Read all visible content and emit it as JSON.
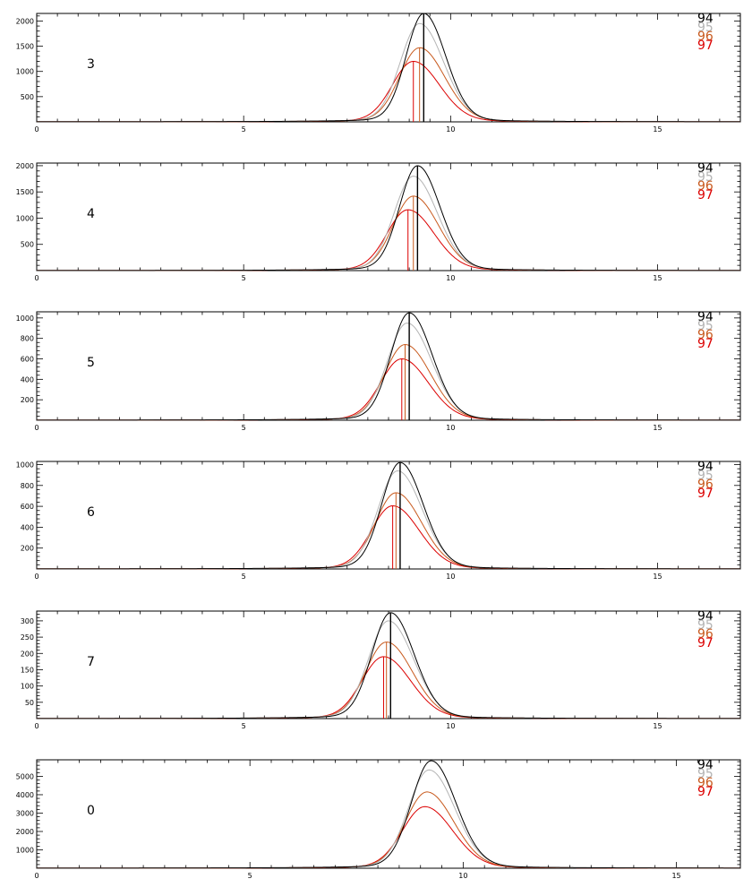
{
  "chart_data": [
    {
      "type": "line",
      "label": "3",
      "xlim": [
        0,
        17
      ],
      "ylim": [
        0,
        2150
      ],
      "xticks": [
        0,
        5,
        10,
        15
      ],
      "yticks": [
        500,
        1000,
        1500,
        2000
      ],
      "legend_position": "top-right",
      "series": [
        {
          "name": "94",
          "color": "#000000",
          "amp": 2150,
          "mu": 9.35,
          "sig": 0.42,
          "marker_x": 9.35
        },
        {
          "name": "95",
          "color": "#b4b4b4",
          "amp": 1950,
          "mu": 9.25,
          "sig": 0.46
        },
        {
          "name": "96",
          "color": "#c85a1e",
          "amp": 1470,
          "mu": 9.25,
          "sig": 0.48,
          "marker_x": 9.25
        },
        {
          "name": "97",
          "color": "#dc0000",
          "amp": 1200,
          "mu": 9.1,
          "sig": 0.5,
          "marker_x": 9.1
        }
      ]
    },
    {
      "type": "line",
      "label": "4",
      "xlim": [
        0,
        17
      ],
      "ylim": [
        0,
        2050
      ],
      "xticks": [
        0,
        5,
        10,
        15
      ],
      "yticks": [
        500,
        1000,
        1500,
        2000
      ],
      "legend_position": "top-right",
      "series": [
        {
          "name": "94",
          "color": "#000000",
          "amp": 2000,
          "mu": 9.2,
          "sig": 0.43,
          "marker_x": 9.2
        },
        {
          "name": "95",
          "color": "#b4b4b4",
          "amp": 1800,
          "mu": 9.1,
          "sig": 0.46
        },
        {
          "name": "96",
          "color": "#c85a1e",
          "amp": 1420,
          "mu": 9.1,
          "sig": 0.48,
          "marker_x": 9.1
        },
        {
          "name": "97",
          "color": "#dc0000",
          "amp": 1160,
          "mu": 8.97,
          "sig": 0.5,
          "marker_x": 8.97
        }
      ]
    },
    {
      "type": "line",
      "label": "5",
      "xlim": [
        0,
        17
      ],
      "ylim": [
        0,
        1060
      ],
      "xticks": [
        0,
        5,
        10,
        15
      ],
      "yticks": [
        200,
        400,
        600,
        800,
        1000
      ],
      "legend_position": "top-right",
      "series": [
        {
          "name": "94",
          "color": "#000000",
          "amp": 1050,
          "mu": 9.0,
          "sig": 0.44,
          "marker_x": 9.0
        },
        {
          "name": "95",
          "color": "#b4b4b4",
          "amp": 950,
          "mu": 8.95,
          "sig": 0.47
        },
        {
          "name": "96",
          "color": "#c85a1e",
          "amp": 740,
          "mu": 8.9,
          "sig": 0.49,
          "marker_x": 8.9
        },
        {
          "name": "97",
          "color": "#dc0000",
          "amp": 600,
          "mu": 8.82,
          "sig": 0.51,
          "marker_x": 8.82
        }
      ]
    },
    {
      "type": "line",
      "label": "6",
      "xlim": [
        0,
        17
      ],
      "ylim": [
        0,
        1030
      ],
      "xticks": [
        0,
        5,
        10,
        15
      ],
      "yticks": [
        200,
        400,
        600,
        800,
        1000
      ],
      "legend_position": "top-right",
      "series": [
        {
          "name": "94",
          "color": "#000000",
          "amp": 1020,
          "mu": 8.78,
          "sig": 0.44,
          "marker_x": 8.78
        },
        {
          "name": "95",
          "color": "#b4b4b4",
          "amp": 940,
          "mu": 8.72,
          "sig": 0.47
        },
        {
          "name": "96",
          "color": "#c85a1e",
          "amp": 730,
          "mu": 8.68,
          "sig": 0.49,
          "marker_x": 8.68
        },
        {
          "name": "97",
          "color": "#dc0000",
          "amp": 605,
          "mu": 8.6,
          "sig": 0.51,
          "marker_x": 8.6
        }
      ]
    },
    {
      "type": "line",
      "label": "7",
      "xlim": [
        0,
        17
      ],
      "ylim": [
        0,
        330
      ],
      "xticks": [
        0,
        5,
        10,
        15
      ],
      "yticks": [
        50,
        100,
        150,
        200,
        250,
        300
      ],
      "legend_position": "top-right",
      "series": [
        {
          "name": "94",
          "color": "#000000",
          "amp": 325,
          "mu": 8.55,
          "sig": 0.45,
          "marker_x": 8.55
        },
        {
          "name": "95",
          "color": "#b4b4b4",
          "amp": 300,
          "mu": 8.5,
          "sig": 0.48
        },
        {
          "name": "96",
          "color": "#c85a1e",
          "amp": 235,
          "mu": 8.45,
          "sig": 0.5,
          "marker_x": 8.45
        },
        {
          "name": "97",
          "color": "#dc0000",
          "amp": 190,
          "mu": 8.38,
          "sig": 0.52,
          "marker_x": 8.38
        }
      ]
    },
    {
      "type": "line",
      "label": "0",
      "xlim": [
        0,
        16.5
      ],
      "ylim": [
        0,
        5900
      ],
      "xticks": [
        0,
        5,
        10,
        15
      ],
      "yticks": [
        1000,
        2000,
        3000,
        4000,
        5000
      ],
      "legend_position": "top-right",
      "series": [
        {
          "name": "94",
          "color": "#000000",
          "amp": 5850,
          "mu": 9.25,
          "sig": 0.46
        },
        {
          "name": "95",
          "color": "#b4b4b4",
          "amp": 5350,
          "mu": 9.2,
          "sig": 0.48
        },
        {
          "name": "96",
          "color": "#c85a1e",
          "amp": 4150,
          "mu": 9.15,
          "sig": 0.5
        },
        {
          "name": "97",
          "color": "#dc0000",
          "amp": 3350,
          "mu": 9.1,
          "sig": 0.52
        }
      ]
    }
  ]
}
